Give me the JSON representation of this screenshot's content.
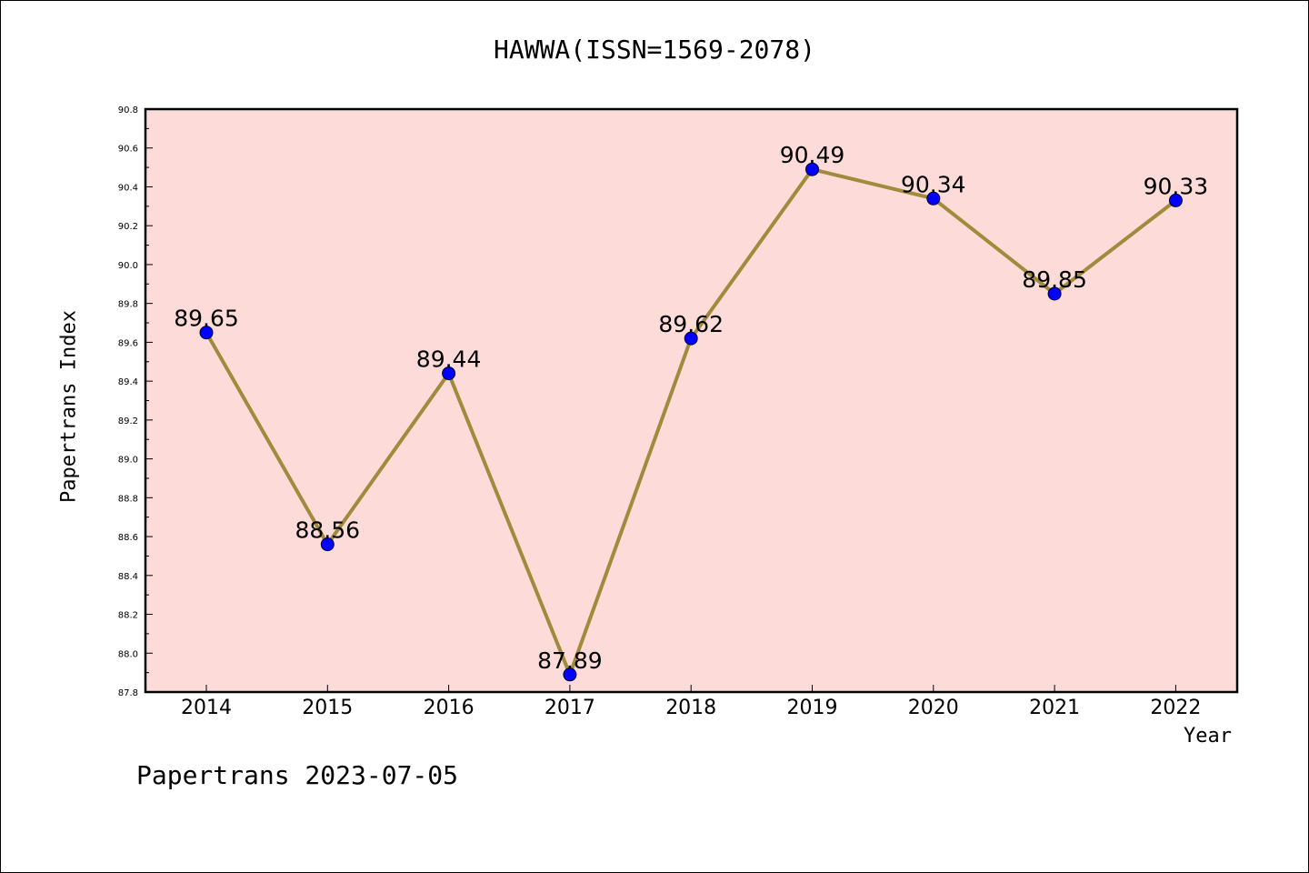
{
  "chart_data": {
    "type": "line",
    "title": "HAWWA(ISSN=1569-2078)",
    "xlabel": "Year",
    "ylabel": "Papertrans Index",
    "categories": [
      "2014",
      "2015",
      "2016",
      "2017",
      "2018",
      "2019",
      "2020",
      "2021",
      "2022"
    ],
    "values": [
      89.65,
      88.56,
      89.44,
      87.89,
      89.62,
      90.49,
      90.34,
      89.85,
      90.33
    ],
    "data_labels": [
      "89.65",
      "88.56",
      "89.44",
      "87.89",
      "89.62",
      "90.49",
      "90.34",
      "89.85",
      "90.33"
    ],
    "ylim": [
      87.8,
      90.8
    ],
    "yticks": [
      "87.8",
      "88.0",
      "88.2",
      "88.4",
      "88.6",
      "88.8",
      "89.0",
      "89.2",
      "89.4",
      "89.6",
      "89.8",
      "90.0",
      "90.2",
      "90.4",
      "90.6",
      "90.8"
    ],
    "grid": false,
    "legend": "none",
    "colors": {
      "plot_background": "#fddbd8",
      "line": "#a08a3c",
      "marker": "#0000ff"
    }
  },
  "footer": {
    "text": "Papertrans 2023-07-05"
  }
}
